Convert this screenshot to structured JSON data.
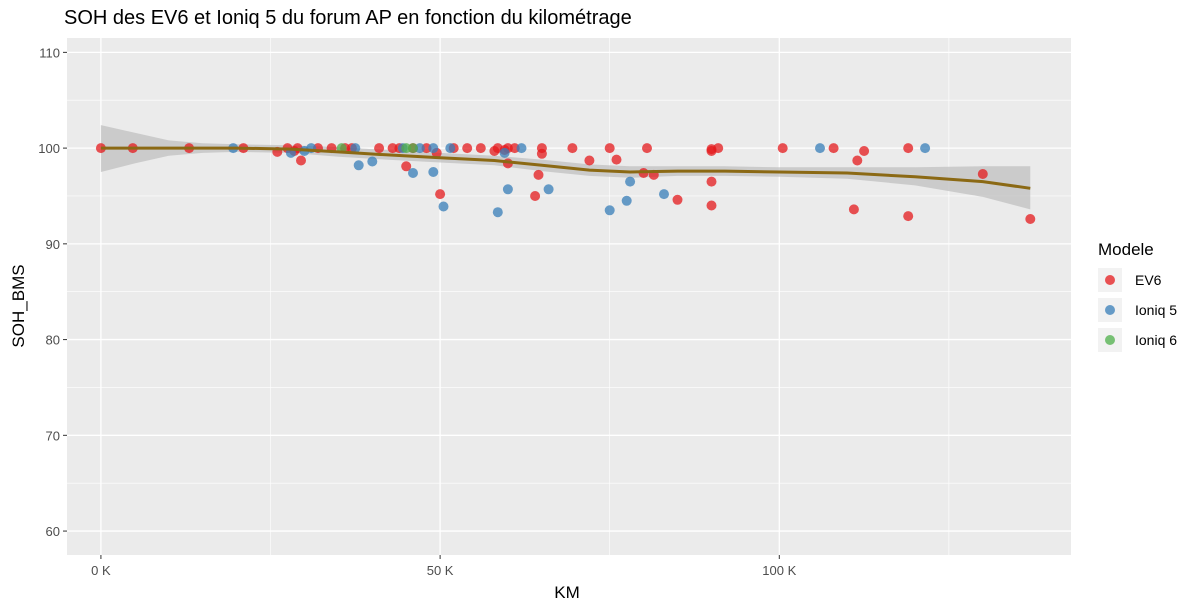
{
  "chart_data": {
    "type": "scatter",
    "title": "SOH des EV6 et Ioniq 5 du forum AP en fonction du kilométrage",
    "xlabel": "KM",
    "ylabel": "SOH_BMS",
    "xlim": [
      -5000,
      143000
    ],
    "ylim": [
      57.5,
      111.5
    ],
    "x_ticks": [
      0,
      50000,
      100000
    ],
    "x_tick_labels": [
      "0 K",
      "50 K",
      "100 K"
    ],
    "x_minor_ticks": [
      25000,
      75000,
      125000
    ],
    "y_ticks": [
      60,
      70,
      80,
      90,
      100,
      110
    ],
    "y_tick_labels": [
      "60",
      "70",
      "80",
      "90",
      "100",
      "110"
    ],
    "y_minor_ticks": [
      65,
      75,
      85,
      95,
      105
    ],
    "grid": true,
    "panel_background": "#ebebeb",
    "legend": {
      "title": "Modele",
      "position": "right"
    },
    "series": [
      {
        "name": "EV6",
        "color": "#e41a1c",
        "points": [
          [
            0,
            100
          ],
          [
            4700,
            100
          ],
          [
            13000,
            100
          ],
          [
            21000,
            100
          ],
          [
            26000,
            99.6
          ],
          [
            27500,
            100
          ],
          [
            28500,
            99.7
          ],
          [
            29000,
            100
          ],
          [
            29500,
            98.7
          ],
          [
            32000,
            100
          ],
          [
            34000,
            100
          ],
          [
            36000,
            100
          ],
          [
            37000,
            100
          ],
          [
            41000,
            100
          ],
          [
            43000,
            100
          ],
          [
            44000,
            100
          ],
          [
            45000,
            98.1
          ],
          [
            46000,
            100
          ],
          [
            48000,
            100
          ],
          [
            49500,
            99.5
          ],
          [
            50000,
            95.2
          ],
          [
            52000,
            100
          ],
          [
            54000,
            100
          ],
          [
            56000,
            100
          ],
          [
            58000,
            99.7
          ],
          [
            58500,
            100
          ],
          [
            59500,
            99.8
          ],
          [
            60000,
            98.4
          ],
          [
            60000,
            100
          ],
          [
            61000,
            100
          ],
          [
            64000,
            95.0
          ],
          [
            64500,
            97.2
          ],
          [
            65000,
            99.4
          ],
          [
            65000,
            100
          ],
          [
            69500,
            100
          ],
          [
            72000,
            98.7
          ],
          [
            75000,
            100
          ],
          [
            76000,
            98.8
          ],
          [
            80000,
            97.4
          ],
          [
            80500,
            100
          ],
          [
            81500,
            97.2
          ],
          [
            85000,
            94.6
          ],
          [
            90000,
            99.7
          ],
          [
            90000,
            99.9
          ],
          [
            90000,
            96.5
          ],
          [
            90000,
            94.0
          ],
          [
            91000,
            100
          ],
          [
            100500,
            100
          ],
          [
            108000,
            100
          ],
          [
            111000,
            93.6
          ],
          [
            111500,
            98.7
          ],
          [
            112500,
            99.7
          ],
          [
            119000,
            100
          ],
          [
            119000,
            92.9
          ],
          [
            130000,
            97.3
          ],
          [
            137000,
            92.6
          ]
        ]
      },
      {
        "name": "Ioniq 5",
        "color": "#377eb8",
        "points": [
          [
            19500,
            100
          ],
          [
            28000,
            99.5
          ],
          [
            30000,
            99.7
          ],
          [
            31000,
            100
          ],
          [
            37500,
            100
          ],
          [
            38000,
            98.2
          ],
          [
            40000,
            98.6
          ],
          [
            44500,
            100
          ],
          [
            46000,
            97.4
          ],
          [
            47000,
            100
          ],
          [
            49000,
            100
          ],
          [
            49000,
            97.5
          ],
          [
            50500,
            93.9
          ],
          [
            51500,
            100
          ],
          [
            58500,
            93.3
          ],
          [
            59500,
            99.5
          ],
          [
            60000,
            95.7
          ],
          [
            62000,
            100
          ],
          [
            66000,
            95.7
          ],
          [
            75000,
            93.5
          ],
          [
            77500,
            94.5
          ],
          [
            78000,
            96.5
          ],
          [
            83000,
            95.2
          ],
          [
            106000,
            100
          ],
          [
            121500,
            100
          ]
        ]
      },
      {
        "name": "Ioniq 6",
        "color": "#4daf4a",
        "points": [
          [
            35500,
            100
          ],
          [
            45000,
            100
          ],
          [
            46000,
            100
          ]
        ]
      }
    ],
    "smooth": {
      "color": "#8b6914",
      "band_color": "#c0c0c0",
      "line": [
        [
          0,
          100.0
        ],
        [
          10000,
          100.0
        ],
        [
          20000,
          100.0
        ],
        [
          28000,
          99.9
        ],
        [
          35000,
          99.6
        ],
        [
          42000,
          99.3
        ],
        [
          50000,
          99.0
        ],
        [
          58000,
          98.7
        ],
        [
          65000,
          98.2
        ],
        [
          72000,
          97.7
        ],
        [
          78000,
          97.5
        ],
        [
          85000,
          97.6
        ],
        [
          92000,
          97.6
        ],
        [
          100000,
          97.5
        ],
        [
          110000,
          97.4
        ],
        [
          120000,
          97.0
        ],
        [
          130000,
          96.5
        ],
        [
          137000,
          95.8
        ]
      ],
      "upper": [
        [
          0,
          102.4
        ],
        [
          5000,
          101.6
        ],
        [
          10000,
          100.8
        ],
        [
          15000,
          100.5
        ],
        [
          20000,
          100.4
        ],
        [
          28000,
          100.3
        ],
        [
          35000,
          100.1
        ],
        [
          42000,
          99.8
        ],
        [
          50000,
          99.5
        ],
        [
          58000,
          99.2
        ],
        [
          65000,
          98.8
        ],
        [
          72000,
          98.3
        ],
        [
          78000,
          98.1
        ],
        [
          85000,
          98.1
        ],
        [
          92000,
          98.1
        ],
        [
          100000,
          98.0
        ],
        [
          110000,
          98.0
        ],
        [
          120000,
          98.0
        ],
        [
          130000,
          98.1
        ],
        [
          137000,
          98.1
        ]
      ],
      "lower": [
        [
          0,
          97.5
        ],
        [
          5000,
          98.4
        ],
        [
          10000,
          99.2
        ],
        [
          15000,
          99.5
        ],
        [
          20000,
          99.6
        ],
        [
          28000,
          99.5
        ],
        [
          35000,
          99.1
        ],
        [
          42000,
          98.8
        ],
        [
          50000,
          98.5
        ],
        [
          58000,
          98.2
        ],
        [
          65000,
          97.6
        ],
        [
          72000,
          97.1
        ],
        [
          78000,
          96.9
        ],
        [
          85000,
          97.1
        ],
        [
          92000,
          97.1
        ],
        [
          100000,
          97.0
        ],
        [
          110000,
          96.8
        ],
        [
          120000,
          96.1
        ],
        [
          130000,
          94.9
        ],
        [
          137000,
          93.6
        ]
      ]
    }
  }
}
